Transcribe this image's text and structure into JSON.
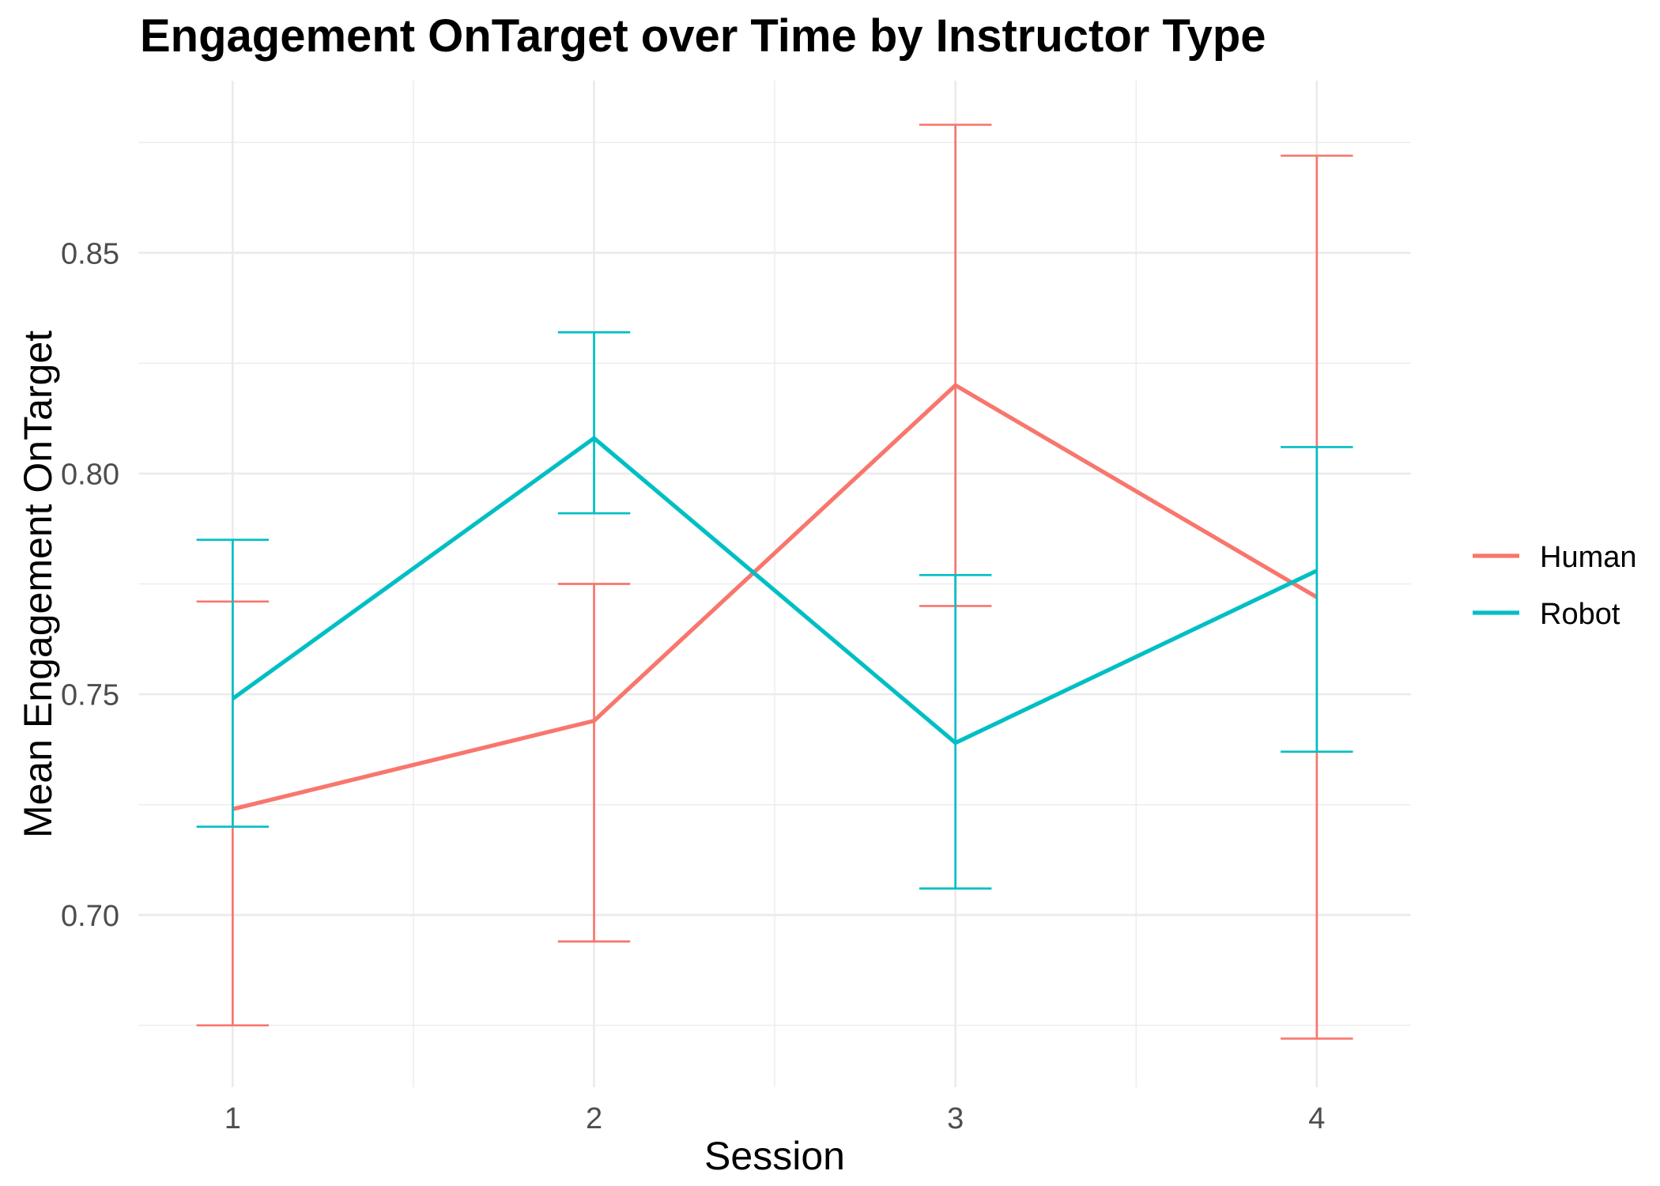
{
  "chart_data": {
    "type": "line",
    "title": "Engagement OnTarget over Time by Instructor Type",
    "xlabel": "Session",
    "ylabel": "Mean Engagement OnTarget",
    "x": [
      1,
      2,
      3,
      4
    ],
    "x_tick_labels": [
      "1",
      "2",
      "3",
      "4"
    ],
    "y_ticks": [
      0.7,
      0.75,
      0.8,
      0.85
    ],
    "y_tick_labels": [
      "0.70",
      "0.75",
      "0.80",
      "0.85"
    ],
    "xlim": [
      0.74,
      4.26
    ],
    "ylim": [
      0.661,
      0.889
    ],
    "grid": true,
    "legend_position": "right",
    "series": [
      {
        "name": "Human",
        "color": "#F8766D",
        "values": [
          0.724,
          0.744,
          0.82,
          0.772
        ],
        "error_lower": [
          0.675,
          0.694,
          0.77,
          0.672
        ],
        "error_upper": [
          0.771,
          0.775,
          0.879,
          0.872
        ]
      },
      {
        "name": "Robot",
        "color": "#00BFC4",
        "values": [
          0.749,
          0.808,
          0.739,
          0.778
        ],
        "error_lower": [
          0.72,
          0.791,
          0.706,
          0.737
        ],
        "error_upper": [
          0.785,
          0.832,
          0.777,
          0.806
        ]
      }
    ]
  }
}
